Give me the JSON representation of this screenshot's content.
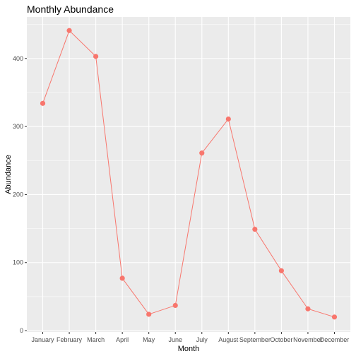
{
  "chart_data": {
    "type": "line",
    "title": "Monthly Abundance",
    "xlabel": "Month",
    "ylabel": "Abundance",
    "categories": [
      "January",
      "February",
      "March",
      "April",
      "May",
      "June",
      "July",
      "August",
      "September",
      "October",
      "November",
      "December"
    ],
    "series": [
      {
        "values": [
          334,
          441,
          403,
          77,
          24,
          37,
          261,
          311,
          149,
          88,
          32,
          20
        ],
        "color": "#f8766d"
      }
    ],
    "ylim": [
      -2,
      461
    ],
    "yticks": [
      0,
      100,
      200,
      300,
      400
    ],
    "ytick_labels": [
      "0",
      "100",
      "200",
      "300",
      "400"
    ],
    "grid": true,
    "panel_background": "#ebebeb",
    "grid_color": "#ffffff"
  }
}
